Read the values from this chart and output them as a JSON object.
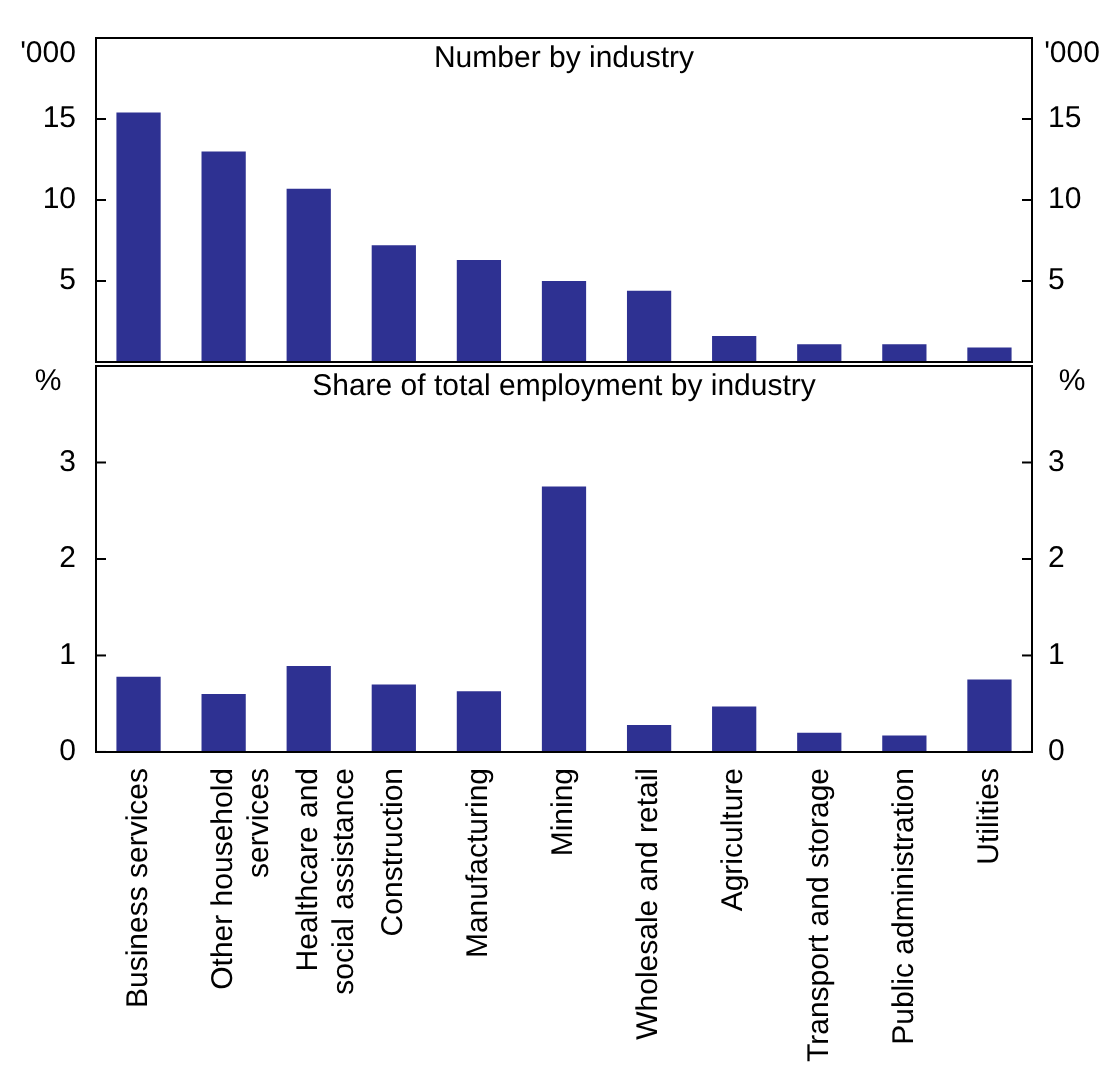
{
  "chart_data": [
    {
      "type": "bar",
      "title": "Number by industry",
      "ylabel": "'000",
      "y2label": "'000",
      "categories": [
        null,
        null,
        null,
        null,
        null,
        null,
        null,
        null,
        null,
        null,
        null
      ],
      "values": [
        15.4,
        13.0,
        10.7,
        7.2,
        6.3,
        5.0,
        4.4,
        1.6,
        1.1,
        1.1,
        0.9
      ],
      "color": "#2e3192",
      "ylim": [
        0,
        20
      ],
      "yticks": [
        5,
        10,
        15
      ],
      "y2lim": [
        0,
        20
      ],
      "y2ticks": [
        5,
        10,
        15
      ],
      "tick_labels": "y",
      "grid": false,
      "legend": false
    },
    {
      "type": "bar",
      "title": "Share of total employment by industry",
      "ylabel": "%",
      "y2label": "%",
      "categories": [
        "Business services",
        "Other household services",
        "Healthcare and social assistance",
        "Construction",
        "Manufacturing",
        "Mining",
        "Wholesale and retail",
        "Agriculture",
        "Transport and storage",
        "Public administration",
        "Utilities"
      ],
      "values": [
        0.78,
        0.6,
        0.89,
        0.7,
        0.63,
        2.75,
        0.28,
        0.47,
        0.2,
        0.17,
        0.75
      ],
      "color": "#2e3192",
      "ylim": [
        0,
        4
      ],
      "yticks": [
        0,
        1,
        2,
        3
      ],
      "y2lim": [
        0,
        4
      ],
      "y2ticks": [
        0,
        1,
        2,
        3
      ],
      "grid": false,
      "legend": false
    }
  ]
}
